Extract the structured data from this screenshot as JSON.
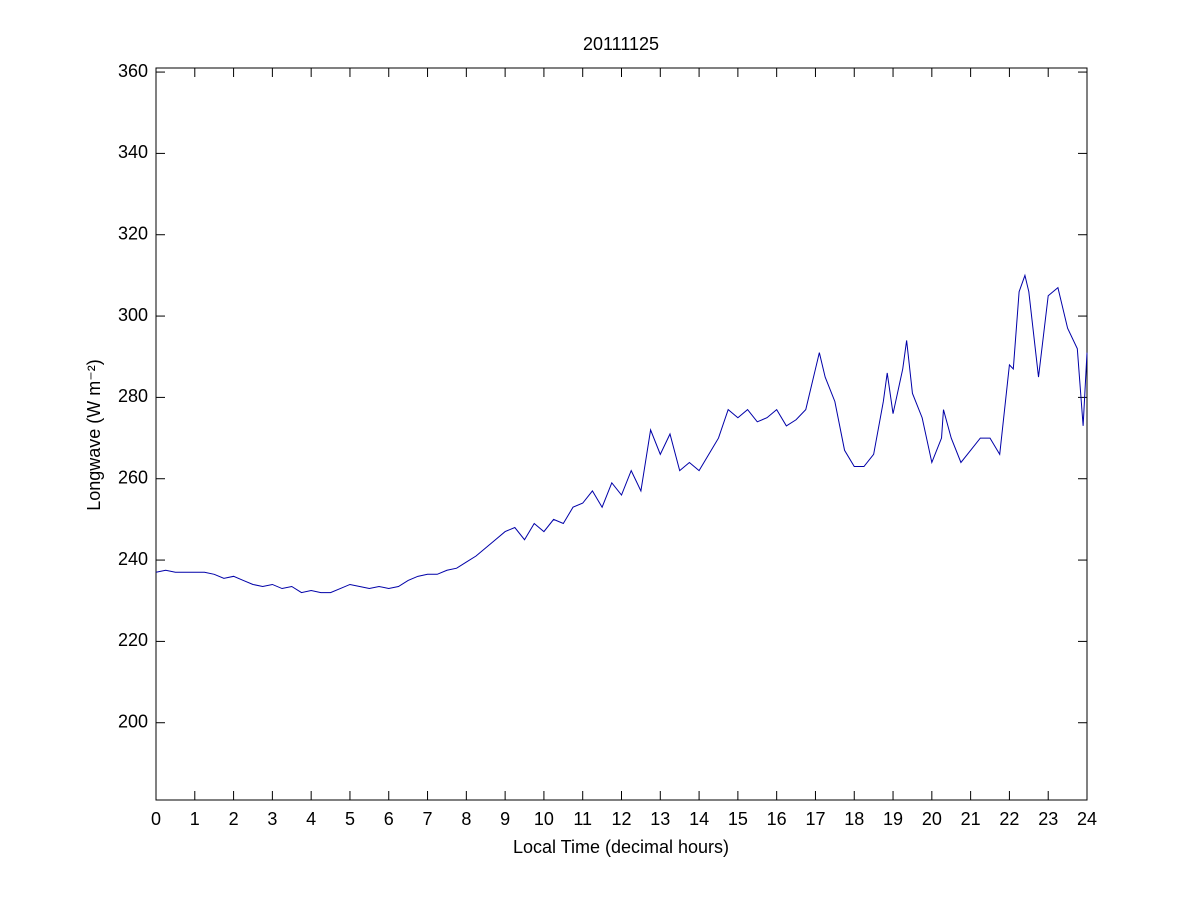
{
  "chart_data": {
    "type": "line",
    "title": "20111125",
    "x_label": "Local Time (decimal hours)",
    "y_label": "Longwave (W m⁻²)",
    "x": [
      0,
      0.25,
      0.5,
      0.75,
      1,
      1.25,
      1.5,
      1.75,
      2,
      2.25,
      2.5,
      2.75,
      3,
      3.25,
      3.5,
      3.75,
      4,
      4.25,
      4.5,
      4.75,
      5,
      5.25,
      5.5,
      5.75,
      6,
      6.25,
      6.5,
      6.75,
      7,
      7.25,
      7.5,
      7.75,
      8,
      8.25,
      8.5,
      8.75,
      9,
      9.25,
      9.5,
      9.75,
      10,
      10.25,
      10.5,
      10.75,
      11,
      11.25,
      11.5,
      11.75,
      12,
      12.25,
      12.5,
      12.75,
      13,
      13.25,
      13.5,
      13.75,
      14,
      14.25,
      14.5,
      14.75,
      15,
      15.25,
      15.5,
      15.75,
      16,
      16.25,
      16.5,
      16.75,
      17,
      17.1,
      17.25,
      17.5,
      17.75,
      18,
      18.25,
      18.5,
      18.75,
      18.85,
      19,
      19.25,
      19.35,
      19.5,
      19.75,
      20,
      20.25,
      20.3,
      20.5,
      20.75,
      21,
      21.25,
      21.5,
      21.75,
      22,
      22.1,
      22.25,
      22.4,
      22.5,
      22.75,
      23,
      23.25,
      23.5,
      23.75,
      23.9,
      24
    ],
    "values": [
      237,
      237.5,
      237,
      237,
      237,
      237,
      236.5,
      235.5,
      236,
      235,
      234,
      233.5,
      234,
      233,
      233.5,
      232,
      232.5,
      232,
      232,
      233,
      234,
      233.5,
      233,
      233.5,
      233,
      233.5,
      235,
      236,
      236.5,
      236.5,
      237.5,
      238,
      239.5,
      241,
      243,
      245,
      247,
      248,
      245,
      249,
      247,
      250,
      249,
      253,
      254,
      257,
      253,
      259,
      256,
      262,
      257,
      272,
      266,
      271,
      262,
      264,
      262,
      266,
      270,
      277,
      275,
      277,
      274,
      275,
      277,
      273,
      274.5,
      277,
      287,
      291,
      285,
      279,
      267,
      263,
      263,
      266,
      279,
      286,
      276,
      287,
      294,
      281,
      275,
      264,
      270,
      277,
      270,
      264,
      267,
      270,
      270,
      266,
      288,
      287,
      306,
      310,
      306,
      285,
      305,
      307,
      297,
      292,
      273,
      291
    ],
    "color": "#0000a8",
    "xlim": [
      0,
      24
    ],
    "xticks": [
      0,
      1,
      2,
      3,
      4,
      5,
      6,
      7,
      8,
      9,
      10,
      11,
      12,
      13,
      14,
      15,
      16,
      17,
      18,
      19,
      20,
      21,
      22,
      23,
      24
    ],
    "ylim": [
      181,
      361
    ],
    "yticks": [
      200,
      220,
      240,
      260,
      280,
      300,
      320,
      340,
      360
    ],
    "grid": false
  }
}
